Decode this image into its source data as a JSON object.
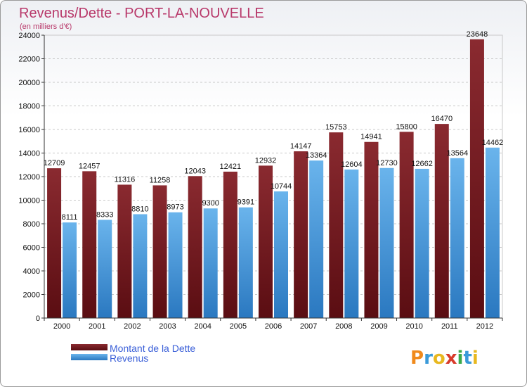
{
  "chart_data": {
    "type": "bar",
    "title": "Revenus/Dette - PORT-LA-NOUVELLE",
    "subtitle": "(en milliers d'€)",
    "categories": [
      "2000",
      "2001",
      "2002",
      "2003",
      "2004",
      "2005",
      "2006",
      "2007",
      "2008",
      "2009",
      "2010",
      "2011",
      "2012"
    ],
    "series": [
      {
        "name": "Montant de la Dette",
        "values": [
          12709,
          12457,
          11316,
          11258,
          12043,
          12421,
          12932,
          14147,
          15753,
          14941,
          15800,
          16470,
          23648
        ]
      },
      {
        "name": "Revenus",
        "values": [
          8111,
          8333,
          8810,
          8973,
          9300,
          9391,
          10744,
          13364,
          12604,
          12730,
          12662,
          13564,
          14462
        ]
      }
    ],
    "ylim": [
      0,
      24000
    ],
    "yticks": [
      0,
      2000,
      4000,
      6000,
      8000,
      10000,
      12000,
      14000,
      16000,
      18000,
      20000,
      22000,
      24000
    ],
    "grid": true,
    "legend_position": "bottom-left",
    "colors": {
      "debt_top": "#8a2a30",
      "debt_bottom": "#5a0d12",
      "revenue_top": "#6ab4ec",
      "revenue_bottom": "#2a78c0",
      "title": "#b8386a",
      "legend_text": "#3a5fd8"
    }
  },
  "logo": {
    "text": "Proxiti"
  }
}
